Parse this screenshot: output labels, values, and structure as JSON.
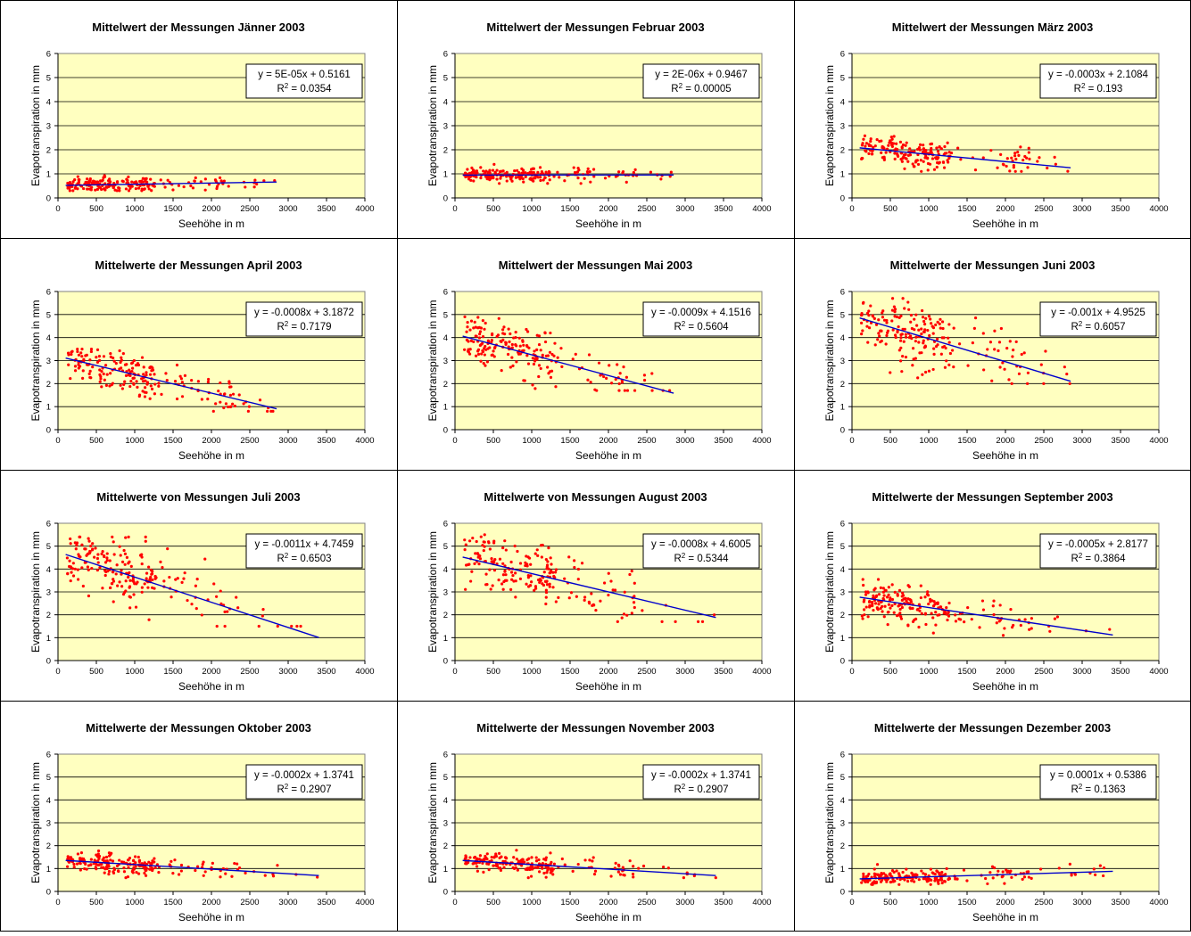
{
  "chart_data": [
    {
      "type": "scatter",
      "title": "Mittelwert der Messungen Jänner 2003",
      "xlabel": "Seehöhe in m",
      "ylabel": "Evapotranspiration in mm",
      "xlim": [
        0,
        4000
      ],
      "ylim": [
        0,
        6
      ],
      "xticks": [
        "0",
        "500",
        "1000",
        "1500",
        "2000",
        "2500",
        "3000",
        "3500",
        "4000"
      ],
      "yticks": [
        "0",
        "1",
        "2",
        "3",
        "4",
        "5",
        "6"
      ],
      "grid": "horizontal",
      "colors": {
        "points": "#ff0000",
        "trend": "#0000cc",
        "plot_bg": "#ffffc0"
      },
      "equation": "y = 5E-05x + 0.5161",
      "r2_label": "R",
      "r2_value": " = 0.0354",
      "trendline": {
        "slope": 5e-05,
        "intercept": 0.5161,
        "x_range": [
          100,
          2850
        ]
      },
      "points_summary": {
        "x_range": [
          100,
          2850
        ],
        "y_range": [
          0.3,
          1.2
        ],
        "approx_count": 200
      }
    },
    {
      "type": "scatter",
      "title": "Mittelwert der Messungen Februar 2003",
      "xlabel": "Seehöhe in m",
      "ylabel": "Evapotranspiration in mm",
      "xlim": [
        0,
        4000
      ],
      "ylim": [
        0,
        6
      ],
      "xticks": [
        "0",
        "500",
        "1000",
        "1500",
        "2000",
        "2500",
        "3000",
        "3500",
        "4000"
      ],
      "yticks": [
        "0",
        "1",
        "2",
        "3",
        "4",
        "5",
        "6"
      ],
      "grid": "horizontal",
      "colors": {
        "points": "#ff0000",
        "trend": "#0000cc",
        "plot_bg": "#ffffc0"
      },
      "equation": "y = 2E-06x + 0.9467",
      "r2_label": "R",
      "r2_value": " = 0.00005",
      "trendline": {
        "slope": 2e-06,
        "intercept": 0.9467,
        "x_range": [
          100,
          2850
        ]
      },
      "points_summary": {
        "x_range": [
          100,
          2850
        ],
        "y_range": [
          0.6,
          1.4
        ],
        "approx_count": 200
      }
    },
    {
      "type": "scatter",
      "title": "Mittelwert der Messungen März 2003",
      "xlabel": "Seehöhe in m",
      "ylabel": "Evapotranspiration in mm",
      "xlim": [
        0,
        4000
      ],
      "ylim": [
        0,
        6
      ],
      "xticks": [
        "0",
        "500",
        "1000",
        "1500",
        "2000",
        "2500",
        "3000",
        "3500",
        "4000"
      ],
      "yticks": [
        "0",
        "1",
        "2",
        "3",
        "4",
        "5",
        "6"
      ],
      "grid": "horizontal",
      "colors": {
        "points": "#ff0000",
        "trend": "#0000cc",
        "plot_bg": "#ffffc0"
      },
      "equation": "y = -0.0003x + 2.1084",
      "r2_label": "R",
      "r2_value": " = 0.193",
      "trendline": {
        "slope": -0.0003,
        "intercept": 2.1084,
        "x_range": [
          100,
          2850
        ]
      },
      "points_summary": {
        "x_range": [
          100,
          2850
        ],
        "y_range": [
          1.1,
          2.7
        ],
        "approx_count": 200
      }
    },
    {
      "type": "scatter",
      "title": "Mittelwerte der Messungen April 2003",
      "xlabel": "Seehöhe in m",
      "ylabel": "Evapotranspiration in mm",
      "xlim": [
        0,
        4000
      ],
      "ylim": [
        0,
        6
      ],
      "xticks": [
        "0",
        "500",
        "1000",
        "1500",
        "2000",
        "2500",
        "3000",
        "3500",
        "4000"
      ],
      "yticks": [
        "0",
        "1",
        "2",
        "3",
        "4",
        "5",
        "6"
      ],
      "grid": "horizontal",
      "colors": {
        "points": "#ff0000",
        "trend": "#0000cc",
        "plot_bg": "#ffffc0"
      },
      "equation": "y = -0.0008x + 3.1872",
      "r2_label": "R",
      "r2_value": " = 0.7179",
      "trendline": {
        "slope": -0.0008,
        "intercept": 3.1872,
        "x_range": [
          100,
          2850
        ]
      },
      "points_summary": {
        "x_range": [
          100,
          2850
        ],
        "y_range": [
          0.8,
          3.5
        ],
        "approx_count": 200
      }
    },
    {
      "type": "scatter",
      "title": "Mittelwert der Messungen Mai 2003",
      "xlabel": "Seehöhe in m",
      "ylabel": "Evapotranspiration in mm",
      "xlim": [
        0,
        4000
      ],
      "ylim": [
        0,
        6
      ],
      "xticks": [
        "0",
        "500",
        "1000",
        "1500",
        "2000",
        "2500",
        "3000",
        "3500",
        "4000"
      ],
      "yticks": [
        "0",
        "1",
        "2",
        "3",
        "4",
        "5",
        "6"
      ],
      "grid": "horizontal",
      "colors": {
        "points": "#ff0000",
        "trend": "#0000cc",
        "plot_bg": "#ffffc0"
      },
      "equation": "y = -0.0009x + 4.1516",
      "r2_label": "R",
      "r2_value": " = 0.5604",
      "trendline": {
        "slope": -0.0009,
        "intercept": 4.1516,
        "x_range": [
          100,
          2850
        ]
      },
      "points_summary": {
        "x_range": [
          100,
          2850
        ],
        "y_range": [
          1.7,
          4.9
        ],
        "approx_count": 200
      }
    },
    {
      "type": "scatter",
      "title": "Mittelwerte der Messungen Juni 2003",
      "xlabel": "Seehöhe in m",
      "ylabel": "Evapotranspiration in mm",
      "xlim": [
        0,
        4000
      ],
      "ylim": [
        0,
        6
      ],
      "xticks": [
        "0",
        "500",
        "1000",
        "1500",
        "2000",
        "2500",
        "3000",
        "3500",
        "4000"
      ],
      "yticks": [
        "0",
        "1",
        "2",
        "3",
        "4",
        "5",
        "6"
      ],
      "grid": "horizontal",
      "colors": {
        "points": "#ff0000",
        "trend": "#0000cc",
        "plot_bg": "#ffffc0"
      },
      "equation": "y = -0.001x + 4.9525",
      "r2_label": "R",
      "r2_value": " = 0.6057",
      "trendline": {
        "slope": -0.001,
        "intercept": 4.9525,
        "x_range": [
          100,
          2850
        ]
      },
      "points_summary": {
        "x_range": [
          100,
          2850
        ],
        "y_range": [
          2.0,
          5.7
        ],
        "approx_count": 200
      }
    },
    {
      "type": "scatter",
      "title": "Mittelwerte von Messungen Juli 2003",
      "xlabel": "Seehöhe in m",
      "ylabel": "Evapotranspiration in mm",
      "xlim": [
        0,
        4000
      ],
      "ylim": [
        0,
        6
      ],
      "xticks": [
        "0",
        "500",
        "1000",
        "1500",
        "2000",
        "2500",
        "3000",
        "3500",
        "4000"
      ],
      "yticks": [
        "0",
        "1",
        "2",
        "3",
        "4",
        "5",
        "6"
      ],
      "grid": "horizontal",
      "colors": {
        "points": "#ff0000",
        "trend": "#0000cc",
        "plot_bg": "#ffffc0"
      },
      "equation": "y = -0.0011x + 4.7459",
      "r2_label": "R",
      "r2_value": " = 0.6503",
      "trendline": {
        "slope": -0.0011,
        "intercept": 4.7459,
        "x_range": [
          100,
          3400
        ]
      },
      "points_summary": {
        "x_range": [
          100,
          3400
        ],
        "y_range": [
          1.5,
          5.4
        ],
        "approx_count": 200
      }
    },
    {
      "type": "scatter",
      "title": "Mittelwerte von Messungen August 2003",
      "xlabel": "Seehöhe in m",
      "ylabel": "Evapotranspiration in mm",
      "xlim": [
        0,
        4000
      ],
      "ylim": [
        0,
        6
      ],
      "xticks": [
        "0",
        "500",
        "1000",
        "1500",
        "2000",
        "2500",
        "3000",
        "3500",
        "4000"
      ],
      "yticks": [
        "0",
        "1",
        "2",
        "3",
        "4",
        "5",
        "6"
      ],
      "grid": "horizontal",
      "colors": {
        "points": "#ff0000",
        "trend": "#0000cc",
        "plot_bg": "#ffffc0"
      },
      "equation": "y = -0.0008x + 4.6005",
      "r2_label": "R",
      "r2_value": " = 0.5344",
      "trendline": {
        "slope": -0.0008,
        "intercept": 4.6005,
        "x_range": [
          100,
          3400
        ]
      },
      "points_summary": {
        "x_range": [
          100,
          3400
        ],
        "y_range": [
          1.7,
          5.5
        ],
        "approx_count": 200
      }
    },
    {
      "type": "scatter",
      "title": "Mittelwerte der Messungen September 2003",
      "xlabel": "Seehöhe in m",
      "ylabel": "Evapotranspiration in mm",
      "xlim": [
        0,
        4000
      ],
      "ylim": [
        0,
        6
      ],
      "xticks": [
        "0",
        "500",
        "1000",
        "1500",
        "2000",
        "2500",
        "3000",
        "3500",
        "4000"
      ],
      "yticks": [
        "0",
        "1",
        "2",
        "3",
        "4",
        "5",
        "6"
      ],
      "grid": "horizontal",
      "colors": {
        "points": "#ff0000",
        "trend": "#0000cc",
        "plot_bg": "#ffffc0"
      },
      "equation": "y = -0.0005x + 2.8177",
      "r2_label": "R",
      "r2_value": " = 0.3864",
      "trendline": {
        "slope": -0.0005,
        "intercept": 2.8177,
        "x_range": [
          100,
          3400
        ]
      },
      "points_summary": {
        "x_range": [
          100,
          3400
        ],
        "y_range": [
          1.1,
          3.6
        ],
        "approx_count": 200
      }
    },
    {
      "type": "scatter",
      "title": "Mittelwerte der Messungen Oktober 2003",
      "xlabel": "Seehöhe in m",
      "ylabel": "Evapotranspiration in mm",
      "xlim": [
        0,
        4000
      ],
      "ylim": [
        0,
        6
      ],
      "xticks": [
        "0",
        "500",
        "1000",
        "1500",
        "2000",
        "2500",
        "3000",
        "3500",
        "4000"
      ],
      "yticks": [
        "0",
        "1",
        "2",
        "3",
        "4",
        "5",
        "6"
      ],
      "grid": "horizontal",
      "colors": {
        "points": "#ff0000",
        "trend": "#0000cc",
        "plot_bg": "#ffffc0"
      },
      "equation": "y = -0.0002x + 1.3741",
      "r2_label": "R",
      "r2_value": " = 0.2907",
      "trendline": {
        "slope": -0.0002,
        "intercept": 1.3741,
        "x_range": [
          100,
          3400
        ]
      },
      "points_summary": {
        "x_range": [
          100,
          3400
        ],
        "y_range": [
          0.6,
          1.8
        ],
        "approx_count": 200
      }
    },
    {
      "type": "scatter",
      "title": "Mittelwerte der Messungen November 2003",
      "xlabel": "Seehöhe in m",
      "ylabel": "Evapotranspiration in mm",
      "xlim": [
        0,
        4000
      ],
      "ylim": [
        0,
        6
      ],
      "xticks": [
        "0",
        "500",
        "1000",
        "1500",
        "2000",
        "2500",
        "3000",
        "3500",
        "4000"
      ],
      "yticks": [
        "0",
        "1",
        "2",
        "3",
        "4",
        "5",
        "6"
      ],
      "grid": "horizontal",
      "colors": {
        "points": "#ff0000",
        "trend": "#0000cc",
        "plot_bg": "#ffffc0"
      },
      "equation": "y = -0.0002x + 1.3741",
      "r2_label": "R",
      "r2_value": " = 0.2907",
      "trendline": {
        "slope": -0.0002,
        "intercept": 1.3741,
        "x_range": [
          100,
          3400
        ]
      },
      "points_summary": {
        "x_range": [
          100,
          3400
        ],
        "y_range": [
          0.6,
          1.8
        ],
        "approx_count": 200
      }
    },
    {
      "type": "scatter",
      "title": "Mittelwerte der Messungen Dezember 2003",
      "xlabel": "Seehöhe in m",
      "ylabel": "Evapotranspiration in mm",
      "xlim": [
        0,
        4000
      ],
      "ylim": [
        0,
        6
      ],
      "xticks": [
        "0",
        "500",
        "1000",
        "1500",
        "2000",
        "2500",
        "3000",
        "3500",
        "4000"
      ],
      "yticks": [
        "0",
        "1",
        "2",
        "3",
        "4",
        "5",
        "6"
      ],
      "grid": "horizontal",
      "colors": {
        "points": "#ff0000",
        "trend": "#0000cc",
        "plot_bg": "#ffffc0"
      },
      "equation": "y = 0.0001x + 0.5386",
      "r2_label": "R",
      "r2_value": " = 0.1363",
      "trendline": {
        "slope": 0.0001,
        "intercept": 0.5386,
        "x_range": [
          100,
          3400
        ]
      },
      "points_summary": {
        "x_range": [
          100,
          3400
        ],
        "y_range": [
          0.3,
          1.3
        ],
        "approx_count": 200
      }
    }
  ]
}
